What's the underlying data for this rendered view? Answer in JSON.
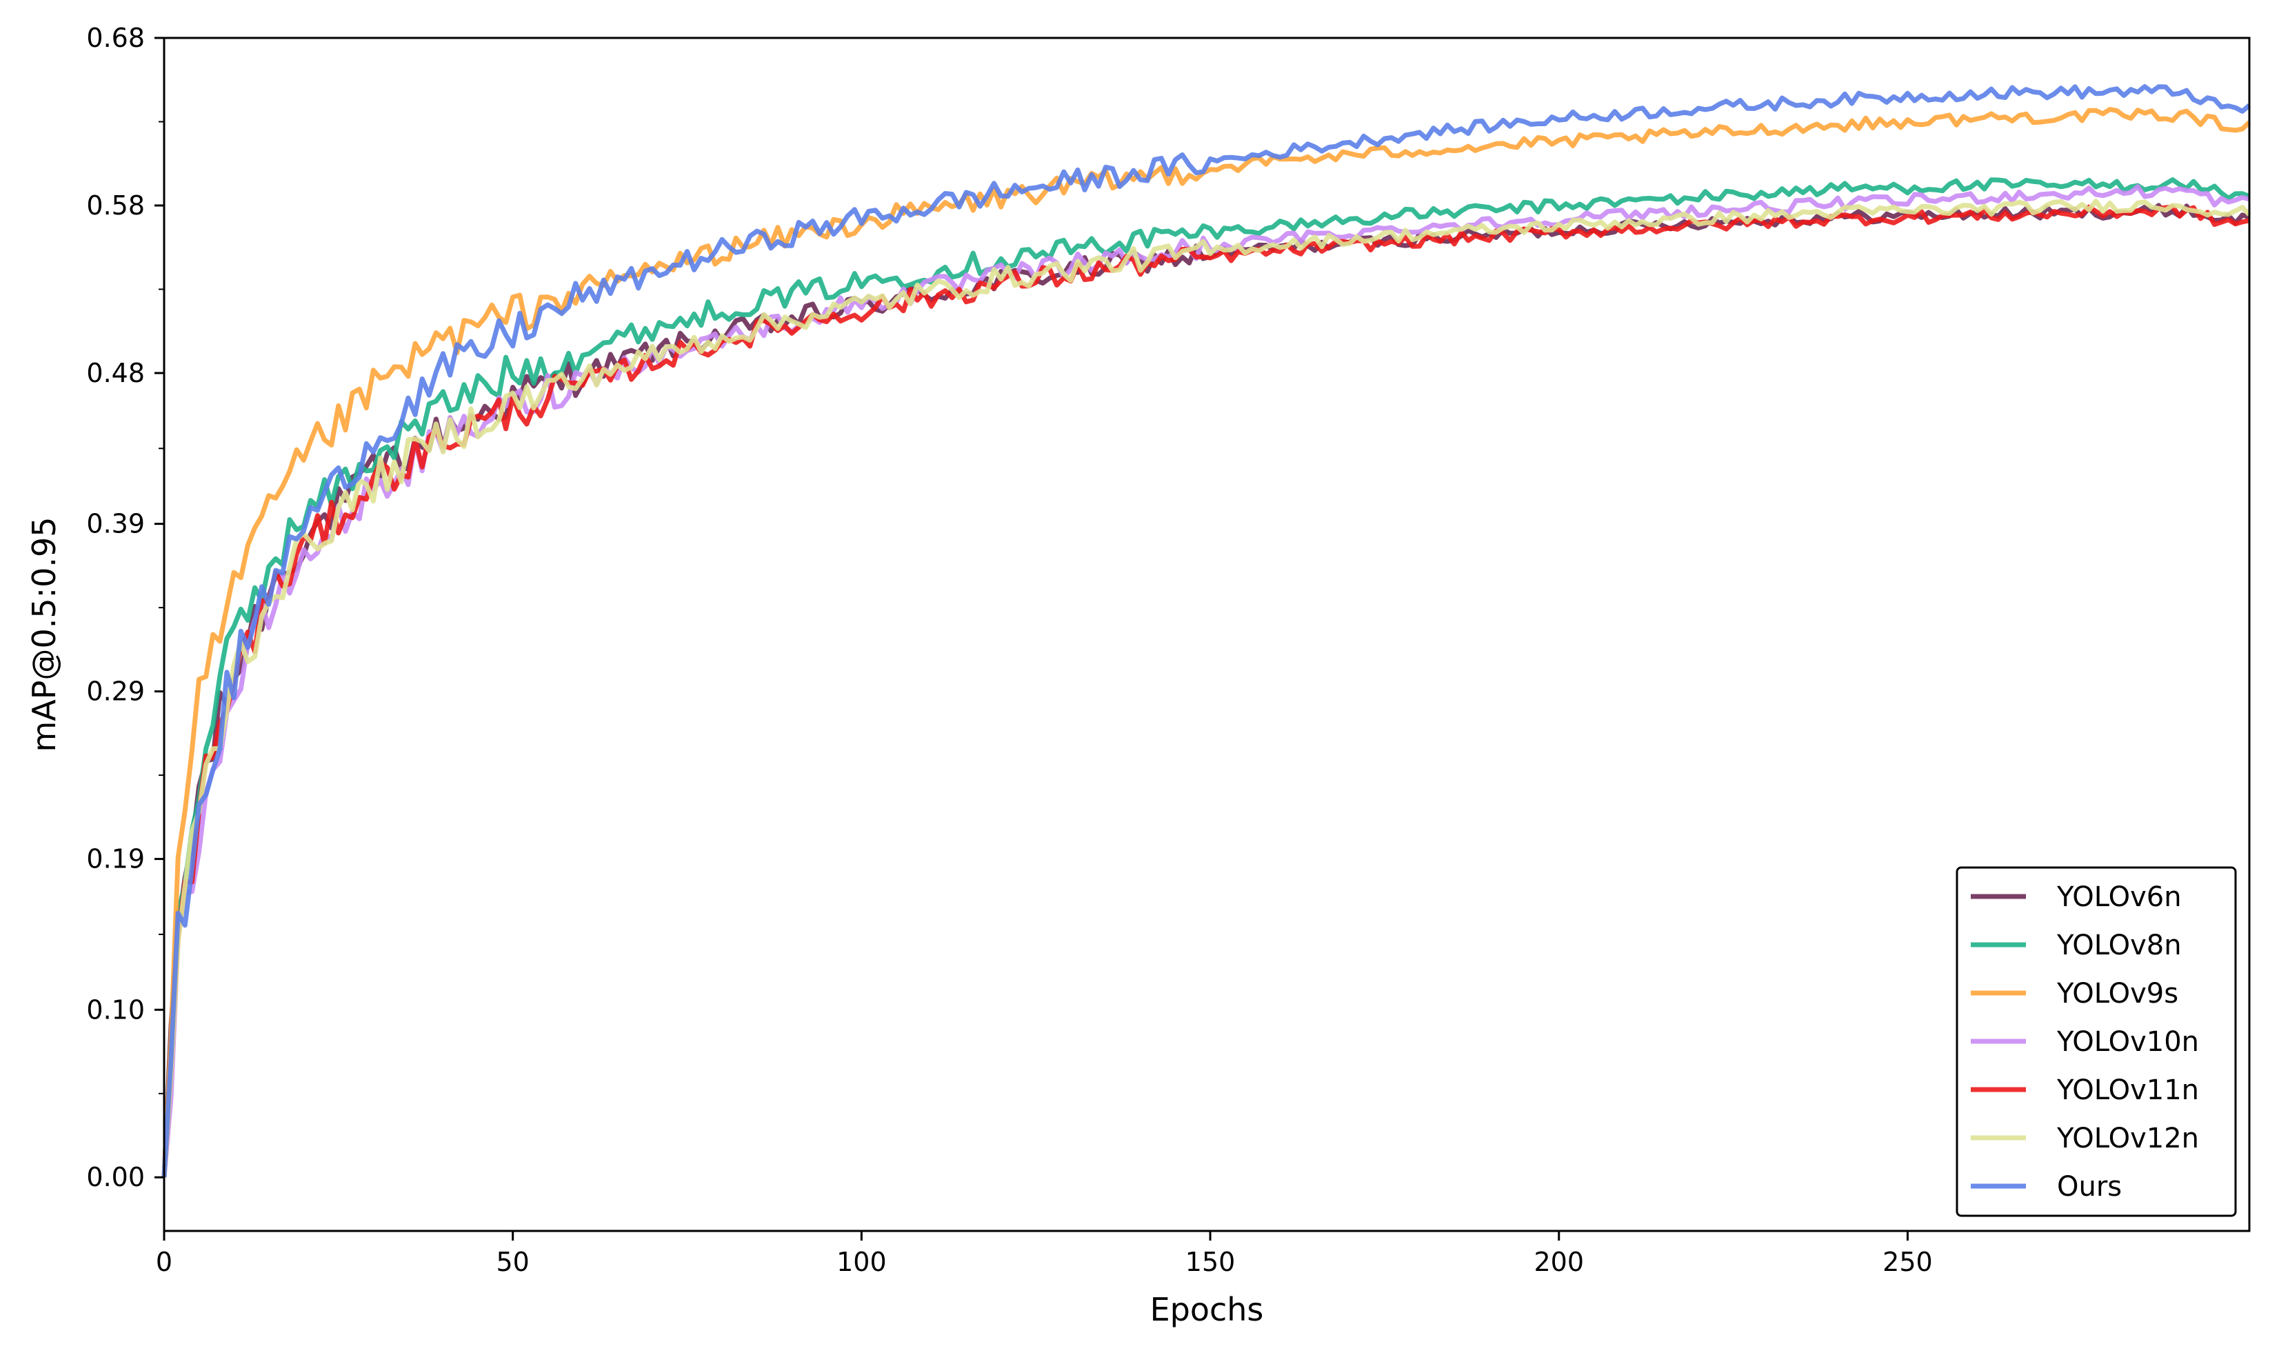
{
  "chart_data": {
    "type": "line",
    "title": "",
    "xlabel": "Epochs",
    "ylabel": "mAP@0.5:0.95",
    "xlim": [
      0,
      299
    ],
    "ylim": [
      -0.032,
      0.68
    ],
    "xticks": [
      0,
      50,
      100,
      150,
      200,
      250
    ],
    "xtick_labels": [
      "0",
      "50",
      "100",
      "150",
      "200",
      "250"
    ],
    "yticks": [
      0.0,
      0.1,
      0.19,
      0.29,
      0.39,
      0.48,
      0.58,
      0.68
    ],
    "ytick_labels": [
      "0.00",
      "0.10",
      "0.19",
      "0.29",
      "0.39",
      "0.48",
      "0.58",
      "0.68"
    ],
    "grid": false,
    "legend_position": "lower-right",
    "series": [
      {
        "name": "YOLOv6n",
        "color": "#6b2a55",
        "keypoints": [
          [
            0,
            0.0
          ],
          [
            2,
            0.15
          ],
          [
            5,
            0.23
          ],
          [
            10,
            0.3
          ],
          [
            15,
            0.35
          ],
          [
            20,
            0.38
          ],
          [
            30,
            0.42
          ],
          [
            40,
            0.445
          ],
          [
            50,
            0.465
          ],
          [
            60,
            0.48
          ],
          [
            70,
            0.493
          ],
          [
            80,
            0.503
          ],
          [
            90,
            0.512
          ],
          [
            100,
            0.52
          ],
          [
            120,
            0.535
          ],
          [
            140,
            0.547
          ],
          [
            160,
            0.555
          ],
          [
            180,
            0.56
          ],
          [
            200,
            0.565
          ],
          [
            220,
            0.57
          ],
          [
            240,
            0.573
          ],
          [
            260,
            0.575
          ],
          [
            280,
            0.576
          ],
          [
            290,
            0.577
          ],
          [
            295,
            0.572
          ],
          [
            299,
            0.572
          ]
        ]
      },
      {
        "name": "YOLOv8n",
        "color": "#1fb38a",
        "keypoints": [
          [
            0,
            0.0
          ],
          [
            2,
            0.15
          ],
          [
            5,
            0.24
          ],
          [
            10,
            0.32
          ],
          [
            15,
            0.365
          ],
          [
            20,
            0.395
          ],
          [
            30,
            0.43
          ],
          [
            40,
            0.46
          ],
          [
            50,
            0.48
          ],
          [
            60,
            0.493
          ],
          [
            70,
            0.507
          ],
          [
            80,
            0.518
          ],
          [
            90,
            0.527
          ],
          [
            100,
            0.534
          ],
          [
            120,
            0.548
          ],
          [
            140,
            0.56
          ],
          [
            160,
            0.568
          ],
          [
            180,
            0.575
          ],
          [
            200,
            0.58
          ],
          [
            220,
            0.585
          ],
          [
            240,
            0.59
          ],
          [
            260,
            0.592
          ],
          [
            280,
            0.592
          ],
          [
            290,
            0.593
          ],
          [
            295,
            0.587
          ],
          [
            299,
            0.587
          ]
        ]
      },
      {
        "name": "YOLOv9s",
        "color": "#ffa53a",
        "keypoints": [
          [
            0,
            0.0
          ],
          [
            2,
            0.18
          ],
          [
            5,
            0.28
          ],
          [
            10,
            0.35
          ],
          [
            15,
            0.395
          ],
          [
            20,
            0.43
          ],
          [
            30,
            0.47
          ],
          [
            40,
            0.5
          ],
          [
            50,
            0.515
          ],
          [
            60,
            0.53
          ],
          [
            70,
            0.542
          ],
          [
            80,
            0.553
          ],
          [
            90,
            0.562
          ],
          [
            100,
            0.57
          ],
          [
            120,
            0.585
          ],
          [
            140,
            0.597
          ],
          [
            160,
            0.607
          ],
          [
            180,
            0.613
          ],
          [
            200,
            0.618
          ],
          [
            220,
            0.623
          ],
          [
            240,
            0.628
          ],
          [
            260,
            0.632
          ],
          [
            280,
            0.634
          ],
          [
            290,
            0.634
          ],
          [
            295,
            0.628
          ],
          [
            299,
            0.628
          ]
        ]
      },
      {
        "name": "YOLOv10n",
        "color": "#c98bf5",
        "keypoints": [
          [
            0,
            0.0
          ],
          [
            2,
            0.13
          ],
          [
            5,
            0.21
          ],
          [
            10,
            0.29
          ],
          [
            15,
            0.335
          ],
          [
            20,
            0.37
          ],
          [
            30,
            0.41
          ],
          [
            40,
            0.44
          ],
          [
            50,
            0.46
          ],
          [
            60,
            0.477
          ],
          [
            70,
            0.49
          ],
          [
            80,
            0.501
          ],
          [
            90,
            0.511
          ],
          [
            100,
            0.522
          ],
          [
            120,
            0.538
          ],
          [
            140,
            0.55
          ],
          [
            160,
            0.56
          ],
          [
            180,
            0.567
          ],
          [
            200,
            0.572
          ],
          [
            220,
            0.577
          ],
          [
            240,
            0.581
          ],
          [
            260,
            0.585
          ],
          [
            280,
            0.588
          ],
          [
            290,
            0.589
          ],
          [
            295,
            0.582
          ],
          [
            299,
            0.582
          ]
        ]
      },
      {
        "name": "YOLOv11n",
        "color": "#ec1a1a",
        "keypoints": [
          [
            0,
            0.0
          ],
          [
            2,
            0.14
          ],
          [
            5,
            0.22
          ],
          [
            10,
            0.3
          ],
          [
            15,
            0.345
          ],
          [
            20,
            0.375
          ],
          [
            30,
            0.415
          ],
          [
            40,
            0.44
          ],
          [
            50,
            0.458
          ],
          [
            60,
            0.473
          ],
          [
            70,
            0.487
          ],
          [
            80,
            0.499
          ],
          [
            90,
            0.509
          ],
          [
            100,
            0.518
          ],
          [
            120,
            0.533
          ],
          [
            140,
            0.545
          ],
          [
            160,
            0.553
          ],
          [
            180,
            0.559
          ],
          [
            200,
            0.564
          ],
          [
            220,
            0.568
          ],
          [
            240,
            0.572
          ],
          [
            260,
            0.574
          ],
          [
            280,
            0.576
          ],
          [
            290,
            0.577
          ],
          [
            295,
            0.57
          ],
          [
            299,
            0.57
          ]
        ]
      },
      {
        "name": "YOLOv12n",
        "color": "#dfe294",
        "keypoints": [
          [
            0,
            0.0
          ],
          [
            2,
            0.14
          ],
          [
            5,
            0.22
          ],
          [
            10,
            0.3
          ],
          [
            15,
            0.345
          ],
          [
            20,
            0.375
          ],
          [
            30,
            0.415
          ],
          [
            40,
            0.442
          ],
          [
            50,
            0.462
          ],
          [
            60,
            0.477
          ],
          [
            70,
            0.49
          ],
          [
            80,
            0.502
          ],
          [
            90,
            0.512
          ],
          [
            100,
            0.521
          ],
          [
            120,
            0.536
          ],
          [
            140,
            0.548
          ],
          [
            160,
            0.557
          ],
          [
            180,
            0.563
          ],
          [
            200,
            0.568
          ],
          [
            220,
            0.572
          ],
          [
            240,
            0.576
          ],
          [
            260,
            0.578
          ],
          [
            280,
            0.58
          ],
          [
            290,
            0.58
          ],
          [
            295,
            0.576
          ],
          [
            299,
            0.576
          ]
        ]
      },
      {
        "name": "Ours",
        "color": "#5b80e8",
        "keypoints": [
          [
            0,
            0.0
          ],
          [
            2,
            0.14
          ],
          [
            5,
            0.22
          ],
          [
            10,
            0.3
          ],
          [
            15,
            0.35
          ],
          [
            20,
            0.39
          ],
          [
            30,
            0.44
          ],
          [
            40,
            0.48
          ],
          [
            50,
            0.505
          ],
          [
            60,
            0.525
          ],
          [
            70,
            0.54
          ],
          [
            80,
            0.553
          ],
          [
            90,
            0.563
          ],
          [
            100,
            0.572
          ],
          [
            120,
            0.588
          ],
          [
            140,
            0.6
          ],
          [
            160,
            0.612
          ],
          [
            180,
            0.623
          ],
          [
            200,
            0.632
          ],
          [
            220,
            0.638
          ],
          [
            240,
            0.643
          ],
          [
            260,
            0.647
          ],
          [
            280,
            0.648
          ],
          [
            290,
            0.648
          ],
          [
            295,
            0.638
          ],
          [
            299,
            0.638
          ]
        ]
      }
    ]
  }
}
